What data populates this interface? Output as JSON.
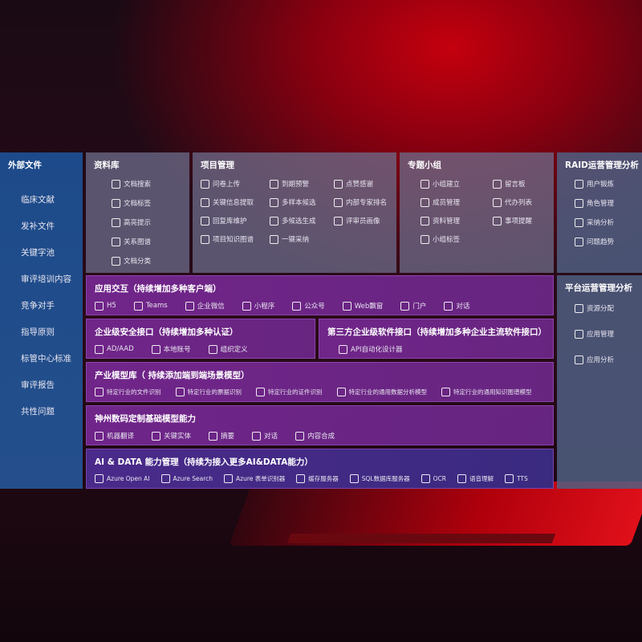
{
  "external": {
    "title": "外部文件",
    "items": [
      "临床文献",
      "发补文件",
      "关键字池",
      "审评培训内容",
      "竞争对手",
      "指导原则",
      "标管中心标准",
      "审评报告",
      "共性问题"
    ]
  },
  "library": {
    "title": "资料库",
    "items": [
      {
        "label": "文档搜索",
        "icon": "doc-search-icon"
      },
      {
        "label": "文档标签",
        "icon": "tag-icon"
      },
      {
        "label": "高亮提示",
        "icon": "pen-icon"
      },
      {
        "label": "关系图谱",
        "icon": "graph-icon"
      },
      {
        "label": "文档分类",
        "icon": "doc-stack-icon"
      }
    ]
  },
  "project": {
    "title": "项目管理",
    "items": [
      {
        "label": "问卷上传",
        "icon": "cloud-upload-icon"
      },
      {
        "label": "到期预警",
        "icon": "alarm-icon"
      },
      {
        "label": "点赞感谢",
        "icon": "thumbs-up-icon"
      },
      {
        "label": "关键信息提取",
        "icon": "window-icon"
      },
      {
        "label": "多样本候选",
        "icon": "reply-icon"
      },
      {
        "label": "内部专家排名",
        "icon": "ranking-icon"
      },
      {
        "label": "回复库维护",
        "icon": "edit-icon"
      },
      {
        "label": "多候选生成",
        "icon": "puzzle-icon"
      },
      {
        "label": "评审员画像",
        "icon": "user-icon"
      },
      {
        "label": "项目知识图谱",
        "icon": "graph-icon"
      },
      {
        "label": "一键采纳",
        "icon": "reply-icon"
      }
    ]
  },
  "group": {
    "title": "专题小组",
    "items": [
      {
        "label": "小组建立",
        "icon": "users-icon"
      },
      {
        "label": "留言板",
        "icon": "bbs-icon"
      },
      {
        "label": "成员管理",
        "icon": "user-add-icon"
      },
      {
        "label": "代办列表",
        "icon": "clipboard-icon"
      },
      {
        "label": "资料管理",
        "icon": "folder-icon"
      },
      {
        "label": "事项提醒",
        "icon": "bell-icon"
      },
      {
        "label": "小组标签",
        "icon": "tag-icon"
      }
    ]
  },
  "raid": {
    "title": "RAID运营管理分析",
    "items": [
      {
        "label": "用户锻炼",
        "icon": "id-card-icon"
      },
      {
        "label": "角色管理",
        "icon": "users-icon"
      },
      {
        "label": "采纳分析",
        "icon": "qa-icon"
      },
      {
        "label": "问题趋势",
        "icon": "trend-icon"
      }
    ]
  },
  "platform": {
    "title": "平台运营管理分析",
    "items": [
      {
        "label": "资源分配",
        "icon": "list-icon"
      },
      {
        "label": "应用管理",
        "icon": "apps-icon"
      },
      {
        "label": "应用分析",
        "icon": "chart-icon"
      }
    ]
  },
  "app": {
    "title": "应用交互（持续增加多种客户端）",
    "items": [
      {
        "label": "H5",
        "icon": "html5-icon"
      },
      {
        "label": "Teams",
        "icon": "teams-icon"
      },
      {
        "label": "企业微信",
        "icon": "wecom-icon"
      },
      {
        "label": "小程序",
        "icon": "miniprogram-icon"
      },
      {
        "label": "公众号",
        "icon": "users-icon"
      },
      {
        "label": "Web飘窗",
        "icon": "window-icon"
      },
      {
        "label": "门户",
        "icon": "portal-icon"
      },
      {
        "label": "对话",
        "icon": "chat-users-icon"
      }
    ]
  },
  "security": {
    "title": "企业级安全接口（持续增加多种认证）",
    "items": [
      {
        "label": "AD/AAD",
        "icon": "diamond-icon"
      },
      {
        "label": "本地账号",
        "icon": "user-lock-icon"
      },
      {
        "label": "组织定义",
        "icon": "org-icon"
      }
    ]
  },
  "thirdparty": {
    "title": "第三方企业级软件接口（持续增加多种企业主流软件接口）",
    "items": [
      {
        "label": "API自动化设计器",
        "icon": "gear-icon"
      }
    ]
  },
  "industry": {
    "title": "产业模型库（ 持续添加端到端场景模型）",
    "items": [
      {
        "label": "特定行业的文件识别",
        "icon": "file-icon"
      },
      {
        "label": "特定行业的票据识别",
        "icon": "receipt-icon"
      },
      {
        "label": "特定行业的证件识别",
        "icon": "id-card-icon"
      },
      {
        "label": "特定行业的通用数据分析模型",
        "icon": "chart-icon"
      },
      {
        "label": "特定行业的通用知识图谱模型",
        "icon": "graph-icon"
      }
    ]
  },
  "base": {
    "title": "神州数码定制基础模型能力",
    "items": [
      {
        "label": "机器翻译",
        "icon": "translate-icon"
      },
      {
        "label": "关键实体",
        "icon": "entity-icon"
      },
      {
        "label": "摘要",
        "icon": "doc-icon"
      },
      {
        "label": "对话",
        "icon": "chat-icon"
      },
      {
        "label": "内容合成",
        "icon": "puzzle-icon"
      }
    ]
  },
  "ai": {
    "title": "AI & DATA 能力管理（持续为接入更多AI&DATA能力）",
    "items": [
      {
        "label": "Azure Open AI",
        "icon": "openai-icon"
      },
      {
        "label": "Azure Search",
        "icon": "search-icon"
      },
      {
        "label": "Azure 表单识别器",
        "icon": "form-icon"
      },
      {
        "label": "缓存服务器",
        "icon": "cache-icon"
      },
      {
        "label": "SQL数据库服务器",
        "icon": "database-icon"
      },
      {
        "label": "OCR",
        "icon": "ocr-icon"
      },
      {
        "label": "语音理解",
        "icon": "speech-icon"
      },
      {
        "label": "TTS",
        "icon": "tts-icon"
      }
    ]
  }
}
